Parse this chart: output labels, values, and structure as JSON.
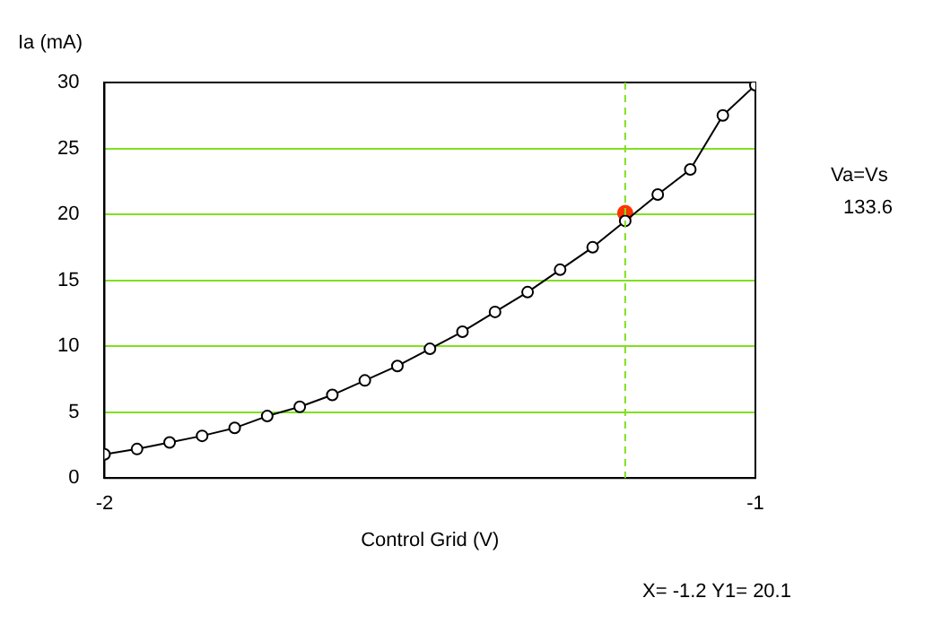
{
  "chart_data": {
    "type": "line",
    "xlabel": "Control Grid (V)",
    "ylabel": "Ia (mA)",
    "x": [
      -2,
      -1.95,
      -1.9,
      -1.85,
      -1.8,
      -1.75,
      -1.7,
      -1.65,
      -1.6,
      -1.55,
      -1.5,
      -1.45,
      -1.4,
      -1.35,
      -1.3,
      -1.25,
      -1.2,
      -1.15,
      -1.1,
      -1.05,
      -1
    ],
    "series": [
      {
        "color": "#000000",
        "values": [
          1.8,
          2.2,
          2.7,
          3.2,
          3.8,
          4.7,
          5.4,
          6.3,
          7.4,
          8.5,
          9.8,
          11.1,
          12.6,
          14.1,
          15.8,
          17.5,
          19.5,
          21.5,
          23.4,
          27.5,
          29.8
        ]
      },
      {
        "type": "scatter",
        "color": "#ff3300",
        "x": [
          -1.2
        ],
        "values": [
          20.1
        ]
      }
    ],
    "xlim": [
      -2,
      -1
    ],
    "xticks": [
      -2,
      -1
    ],
    "ylim": [
      0,
      30
    ],
    "yticks": [
      0,
      5,
      10,
      15,
      20,
      25,
      30
    ],
    "grid": "y",
    "marker": "circle",
    "legend": false,
    "ref_lines": [
      {
        "axis": "x",
        "value": -1.2,
        "color": "#80e020",
        "line_style": "dashed"
      }
    ],
    "annotations": [
      "Va=Vs",
      "133.6",
      "X= -1.2  Y1= 20.1"
    ]
  }
}
